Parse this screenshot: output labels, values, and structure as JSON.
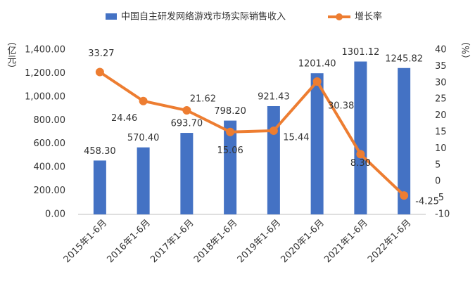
{
  "chart_data": {
    "type": "bar-line",
    "categories": [
      "2015年1-6月",
      "2016年1-6月",
      "2017年1-6月",
      "2018年1-6月",
      "2019年1-6月",
      "2020年1-6月",
      "2021年1-6月",
      "2022年1-6月"
    ],
    "series": [
      {
        "name": "中国自主研发网络游戏市场实际销售收入",
        "type": "bar",
        "color": "#4472c4",
        "values": [
          458.3,
          570.4,
          693.7,
          798.2,
          921.43,
          1201.4,
          1301.12,
          1245.82
        ],
        "value_labels": [
          "458.30",
          "570.40",
          "693.70",
          "798.20",
          "921.43",
          "1201.40",
          "1301.12",
          "1245.82"
        ]
      },
      {
        "name": "增长率",
        "type": "line",
        "axis": "y2",
        "color": "#ed7d31",
        "values": [
          33.27,
          24.46,
          21.62,
          15.06,
          15.44,
          30.38,
          8.3,
          -4.25
        ],
        "value_labels": [
          "33.27",
          "24.46",
          "21.62",
          "15.06",
          "15.44",
          "30.38",
          "8.30",
          "-4.25"
        ]
      }
    ],
    "ylabel": "（亿元）",
    "y2label": "（%）",
    "ylim": [
      0,
      1400
    ],
    "yticks": [
      {
        "value": 0,
        "label": "0.00"
      },
      {
        "value": 200,
        "label": "200.00"
      },
      {
        "value": 400,
        "label": "400.00"
      },
      {
        "value": 600,
        "label": "600.00"
      },
      {
        "value": 800,
        "label": "800.00"
      },
      {
        "value": 1000,
        "label": "1,000.00"
      },
      {
        "value": 1200,
        "label": "1,200.00"
      },
      {
        "value": 1400,
        "label": "1,400.00"
      }
    ],
    "y2lim": [
      -10,
      40
    ],
    "y2ticks": [
      -10,
      -5,
      0,
      5,
      10,
      15,
      20,
      25,
      30,
      35,
      40
    ],
    "grid": false
  }
}
